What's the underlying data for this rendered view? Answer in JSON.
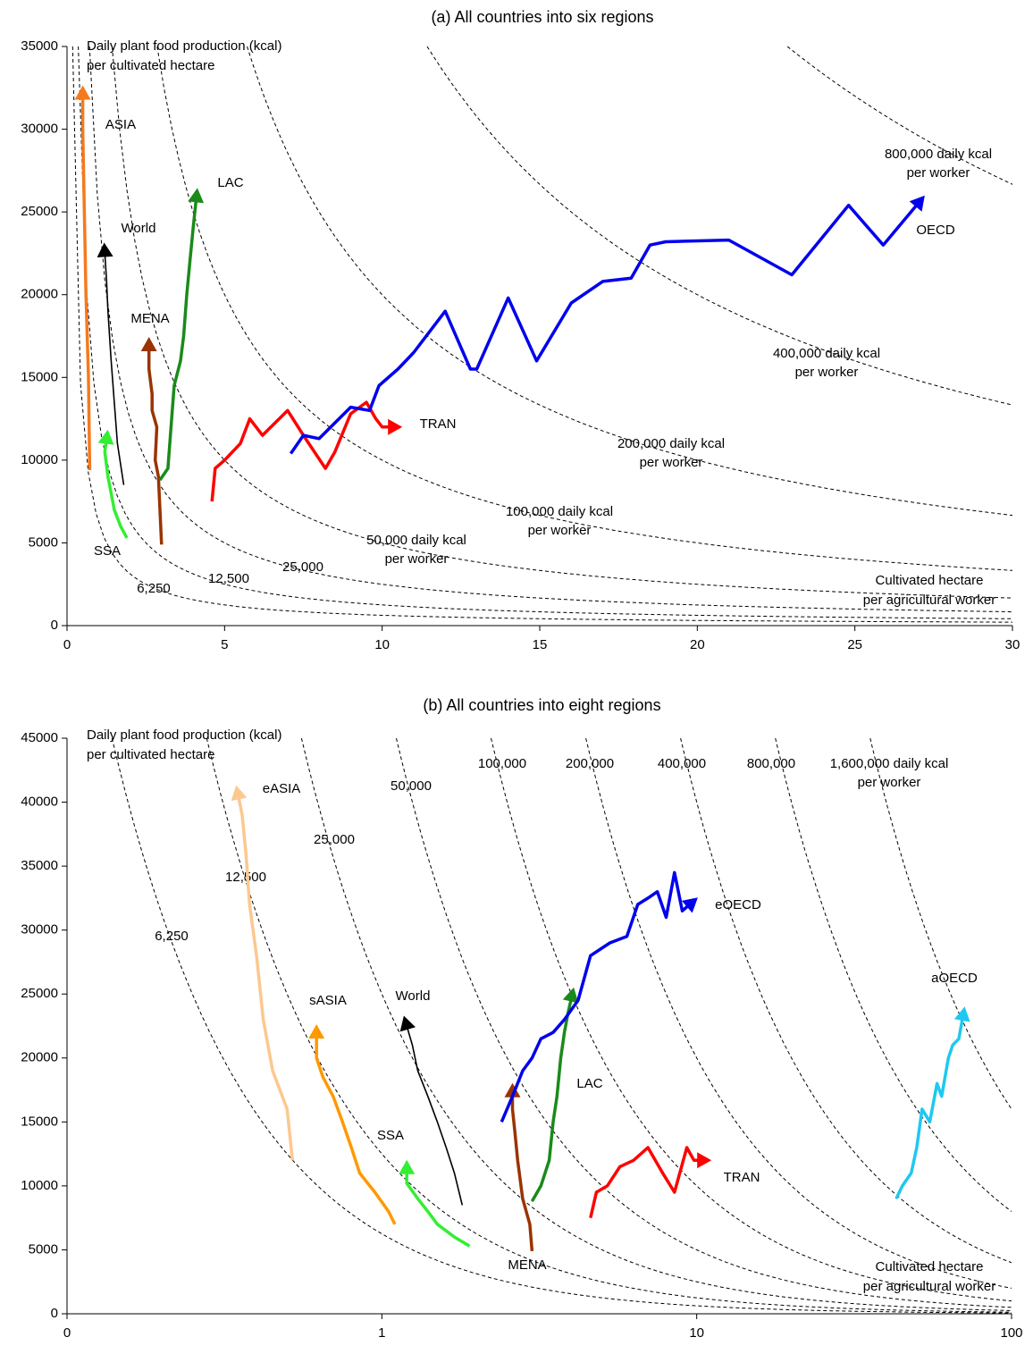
{
  "chart_data": [
    {
      "type": "line",
      "title": "(a) All countries into six regions",
      "y_label": [
        "Daily plant food production (kcal)",
        "per cultivated hectare"
      ],
      "x_label": [
        "Cultivated hectare",
        "per agricultural worker"
      ],
      "xlim": [
        0,
        30
      ],
      "xticks": [
        0,
        5,
        10,
        15,
        20,
        25,
        30
      ],
      "ylim": [
        0,
        35000
      ],
      "yticks": [
        0,
        5000,
        10000,
        15000,
        20000,
        25000,
        30000,
        35000
      ],
      "isolines": [
        {
          "value": 6250,
          "label": [
            "6,250"
          ]
        },
        {
          "value": 12500,
          "label": [
            "12,500"
          ]
        },
        {
          "value": 25000,
          "label": [
            "25,000"
          ]
        },
        {
          "value": 50000,
          "label": [
            "50,000 daily kcal",
            "per worker"
          ]
        },
        {
          "value": 100000,
          "label": [
            "100,000 daily kcal",
            "per worker"
          ]
        },
        {
          "value": 200000,
          "label": [
            "200,000 daily kcal",
            "per worker"
          ]
        },
        {
          "value": 400000,
          "label": [
            "400,000 daily kcal",
            "per worker"
          ]
        },
        {
          "value": 800000,
          "label": [
            "800,000 daily kcal",
            "per worker"
          ]
        }
      ],
      "series": [
        {
          "name": "ASIA",
          "color": "#f57a1e",
          "x": [
            0.72,
            0.68,
            0.6,
            0.55,
            0.5,
            0.5
          ],
          "y": [
            9400,
            15000,
            20000,
            25000,
            30000,
            32000
          ]
        },
        {
          "name": "World",
          "color": "#000000",
          "x": [
            1.8,
            1.6,
            1.5,
            1.4,
            1.3,
            1.25,
            1.2
          ],
          "y": [
            8500,
            11000,
            13500,
            16000,
            19000,
            21000,
            22500
          ]
        },
        {
          "name": "SSA",
          "color": "#33ee33",
          "x": [
            1.9,
            1.7,
            1.5,
            1.4,
            1.3,
            1.2,
            1.25
          ],
          "y": [
            5300,
            6000,
            7000,
            8000,
            9000,
            10500,
            11200
          ]
        },
        {
          "name": "MENA",
          "color": "#993300",
          "x": [
            3.0,
            2.95,
            2.9,
            2.8,
            2.85,
            2.7,
            2.7,
            2.6,
            2.6
          ],
          "y": [
            4900,
            7000,
            9000,
            10000,
            12000,
            13000,
            14000,
            15500,
            16800
          ]
        },
        {
          "name": "LAC",
          "color": "#1a8a1a",
          "x": [
            2.95,
            3.2,
            3.3,
            3.4,
            3.6,
            3.7,
            3.8,
            3.9,
            4.0,
            4.1
          ],
          "y": [
            8800,
            9500,
            12000,
            14500,
            16000,
            17500,
            20000,
            22000,
            24000,
            25800
          ]
        },
        {
          "name": "TRAN",
          "color": "#ff0000",
          "x": [
            4.6,
            4.7,
            5.0,
            5.5,
            5.8,
            6.2,
            7.0,
            7.5,
            8.2,
            8.5,
            9.0,
            9.5,
            9.8,
            10.0,
            10.3
          ],
          "y": [
            7500,
            9500,
            10000,
            11000,
            12500,
            11500,
            13000,
            11500,
            9500,
            10500,
            12800,
            13500,
            12500,
            12000,
            12000
          ]
        },
        {
          "name": "OECD",
          "color": "#0000ee",
          "x": [
            7.1,
            7.5,
            8,
            9,
            9.6,
            9.9,
            10.5,
            11,
            12,
            12.8,
            13,
            14,
            14.9,
            16,
            17,
            17.9,
            18.5,
            19,
            21,
            23,
            24.8,
            25.9,
            27
          ],
          "y": [
            10400,
            11500,
            11300,
            13200,
            13000,
            14500,
            15500,
            16500,
            19000,
            15500,
            15500,
            19800,
            16000,
            19500,
            20800,
            21000,
            23000,
            23200,
            23300,
            21200,
            25400,
            23000,
            25500
          ]
        }
      ]
    },
    {
      "type": "line",
      "title": "(b) All countries into eight regions",
      "y_label": [
        "Daily plant food production (kcal)",
        "per cultivated hectare"
      ],
      "x_label": [
        "Cultivated hectare",
        "per agricultural worker"
      ],
      "xscale": "log",
      "xlim": [
        0.1,
        100
      ],
      "xticks": [
        {
          "value": 0.1,
          "label": "0"
        },
        1,
        10,
        100
      ],
      "ylim": [
        0,
        45000
      ],
      "yticks": [
        0,
        5000,
        10000,
        15000,
        20000,
        25000,
        30000,
        35000,
        40000,
        45000
      ],
      "isolines": [
        {
          "value": 6250,
          "label": [
            "6,250"
          ]
        },
        {
          "value": 12500,
          "label": [
            "12,500"
          ]
        },
        {
          "value": 25000,
          "label": [
            "25,000"
          ]
        },
        {
          "value": 50000,
          "label": [
            "50,000"
          ]
        },
        {
          "value": 100000,
          "label": [
            "100,000"
          ]
        },
        {
          "value": 200000,
          "label": [
            "200,000"
          ]
        },
        {
          "value": 400000,
          "label": [
            "400,000"
          ]
        },
        {
          "value": 800000,
          "label": [
            "800,000"
          ]
        },
        {
          "value": 1600000,
          "label": [
            "1,600,000 daily kcal",
            "per worker"
          ]
        }
      ],
      "series": [
        {
          "name": "eASIA",
          "color": "#fcc890",
          "x": [
            0.52,
            0.5,
            0.45,
            0.42,
            0.4,
            0.38,
            0.37,
            0.36,
            0.35
          ],
          "y": [
            12000,
            16000,
            19000,
            23000,
            28000,
            32000,
            36000,
            39000,
            40500
          ]
        },
        {
          "name": "sASIA",
          "color": "#ff9900",
          "x": [
            1.1,
            1.05,
            0.95,
            0.85,
            0.8,
            0.75,
            0.7,
            0.65,
            0.62,
            0.62
          ],
          "y": [
            7000,
            8000,
            9500,
            11000,
            13000,
            15000,
            17000,
            18500,
            20000,
            21800
          ]
        },
        {
          "name": "World",
          "color": "#000000",
          "x": [
            1.8,
            1.7,
            1.6,
            1.5,
            1.4,
            1.3,
            1.25,
            1.2
          ],
          "y": [
            8500,
            11000,
            13000,
            15000,
            17000,
            19000,
            21000,
            22500
          ]
        },
        {
          "name": "SSA",
          "color": "#33ee33",
          "x": [
            1.9,
            1.7,
            1.5,
            1.4,
            1.3,
            1.2,
            1.2
          ],
          "y": [
            5300,
            6000,
            7000,
            8000,
            9000,
            10200,
            11200
          ]
        },
        {
          "name": "MENA",
          "color": "#993300",
          "x": [
            3.0,
            2.95,
            2.8,
            2.7,
            2.65,
            2.6,
            2.6
          ],
          "y": [
            4900,
            7000,
            9000,
            12000,
            14000,
            16000,
            17200
          ]
        },
        {
          "name": "LAC",
          "color": "#1a8a1a",
          "x": [
            3.0,
            3.2,
            3.4,
            3.5,
            3.6,
            3.7,
            3.8,
            3.9,
            4.0
          ],
          "y": [
            8800,
            10000,
            12000,
            15000,
            17000,
            20000,
            22000,
            23500,
            24700
          ]
        },
        {
          "name": "TRAN",
          "color": "#ff0000",
          "x": [
            4.6,
            4.8,
            5.2,
            5.7,
            6.3,
            7.0,
            7.8,
            8.5,
            9.3,
            9.8,
            10.3
          ],
          "y": [
            7500,
            9500,
            10000,
            11500,
            12000,
            13000,
            11000,
            9500,
            13000,
            12000,
            12000
          ]
        },
        {
          "name": "eOECD",
          "color": "#0000ee",
          "x": [
            2.4,
            2.6,
            2.8,
            3.0,
            3.2,
            3.5,
            3.8,
            4.2,
            4.6,
            5.3,
            6.0,
            6.5,
            7.0,
            7.5,
            8.0,
            8.5,
            9.0,
            9.5
          ],
          "y": [
            15000,
            17000,
            19000,
            20000,
            21500,
            22000,
            23000,
            24500,
            28000,
            29000,
            29500,
            32000,
            32500,
            33000,
            31000,
            34500,
            31500,
            32000
          ]
        },
        {
          "name": "aOECD",
          "color": "#1ec8f0",
          "x": [
            43,
            45,
            48,
            50,
            52,
            55,
            58,
            60,
            63,
            65,
            68,
            70
          ],
          "y": [
            9000,
            10000,
            11000,
            13000,
            16000,
            15000,
            18000,
            17000,
            20000,
            21000,
            21500,
            23200
          ]
        }
      ]
    }
  ]
}
